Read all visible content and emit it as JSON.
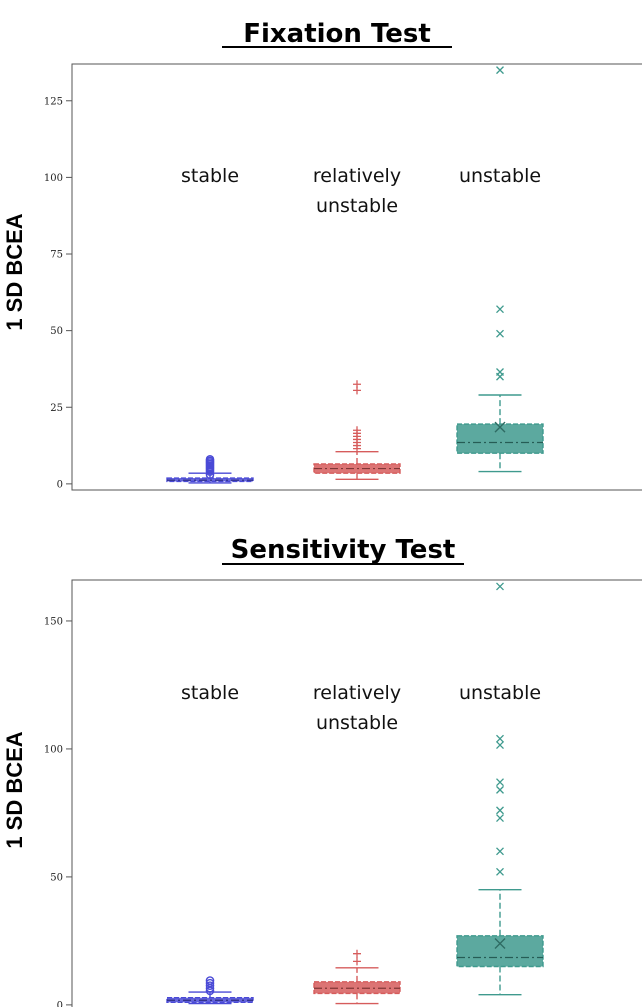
{
  "chart_data": [
    {
      "type": "box",
      "title": "Fixation Test",
      "ylabel": "1 SD BCEA",
      "ylim": [
        -2,
        137
      ],
      "yticks": [
        0,
        25,
        50,
        75,
        100,
        125
      ],
      "categories": [
        "stable",
        "relatively unstable",
        "unstable"
      ],
      "category_lines": [
        [
          "stable"
        ],
        [
          "relatively",
          "unstable"
        ],
        [
          "unstable"
        ]
      ],
      "colors": [
        "#4a4ad6",
        "#d65c5c",
        "#3f9a8e"
      ],
      "boxes": [
        {
          "whisker_low": 0.3,
          "q1": 0.8,
          "median": 1.2,
          "q3": 1.9,
          "whisker_high": 3.5,
          "mean": 1.5,
          "outliers": [
            4.5,
            5.0,
            5.5,
            6.0,
            6.5,
            7.0,
            7.5,
            8.0,
            3.0,
            4.0
          ]
        },
        {
          "whisker_low": 1.5,
          "q1": 3.5,
          "median": 5.0,
          "q3": 6.5,
          "whisker_high": 10.5,
          "mean": 5.6,
          "outliers": [
            11.5,
            12.5,
            13.5,
            14.5,
            15.5,
            16.5,
            17.5,
            30.5,
            32.5
          ]
        },
        {
          "whisker_low": 4.0,
          "q1": 10.0,
          "median": 13.5,
          "q3": 19.5,
          "whisker_high": 29.0,
          "mean": 18.5,
          "outliers": [
            35.0,
            36.5,
            49.0,
            57.0,
            135.0
          ]
        }
      ]
    },
    {
      "type": "box",
      "title": "Sensitivity Test",
      "ylabel": "1 SD BCEA",
      "ylim": [
        -2,
        166
      ],
      "yticks": [
        0,
        50,
        100,
        150
      ],
      "categories": [
        "stable",
        "relatively unstable",
        "unstable"
      ],
      "category_lines": [
        [
          "stable"
        ],
        [
          "relatively",
          "unstable"
        ],
        [
          "unstable"
        ]
      ],
      "colors": [
        "#4a4ad6",
        "#d65c5c",
        "#3f9a8e"
      ],
      "boxes": [
        {
          "whisker_low": 0.5,
          "q1": 1.0,
          "median": 1.8,
          "q3": 2.8,
          "whisker_high": 5.0,
          "mean": 2.0,
          "outliers": [
            6.5,
            7.5,
            8.5,
            9.5,
            5.5
          ]
        },
        {
          "whisker_low": 0.5,
          "q1": 4.5,
          "median": 6.5,
          "q3": 9.0,
          "whisker_high": 14.5,
          "mean": 6.8,
          "outliers": [
            17.0,
            20.0
          ]
        },
        {
          "whisker_low": 4.0,
          "q1": 15.0,
          "median": 18.5,
          "q3": 27.0,
          "whisker_high": 45.0,
          "mean": 24.0,
          "outliers": [
            52.0,
            60.0,
            73.0,
            76.0,
            84.0,
            87.0,
            101.5,
            104.0,
            163.5
          ]
        }
      ]
    }
  ]
}
